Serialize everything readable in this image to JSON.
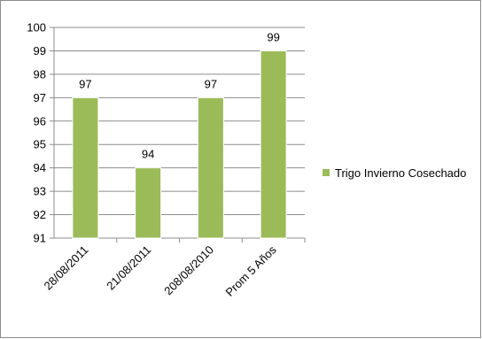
{
  "chart_data": {
    "type": "bar",
    "categories": [
      "28/08/2011",
      "21/08/2011",
      "208/08/2010",
      "Prom 5 Años"
    ],
    "series": [
      {
        "name": "Trigo Invierno Cosechado",
        "values": [
          97,
          94,
          97,
          99
        ]
      }
    ],
    "ylim": [
      91,
      100
    ],
    "yticks": [
      91,
      92,
      93,
      94,
      95,
      96,
      97,
      98,
      99,
      100
    ],
    "grid": true,
    "legend": "right",
    "title": "",
    "xlabel": "",
    "ylabel": ""
  },
  "colors": {
    "bar_fill": "#9bbb59",
    "bar_stroke": "#ffffff",
    "grid": "#8c8c8c",
    "axis": "#8c8c8c"
  }
}
